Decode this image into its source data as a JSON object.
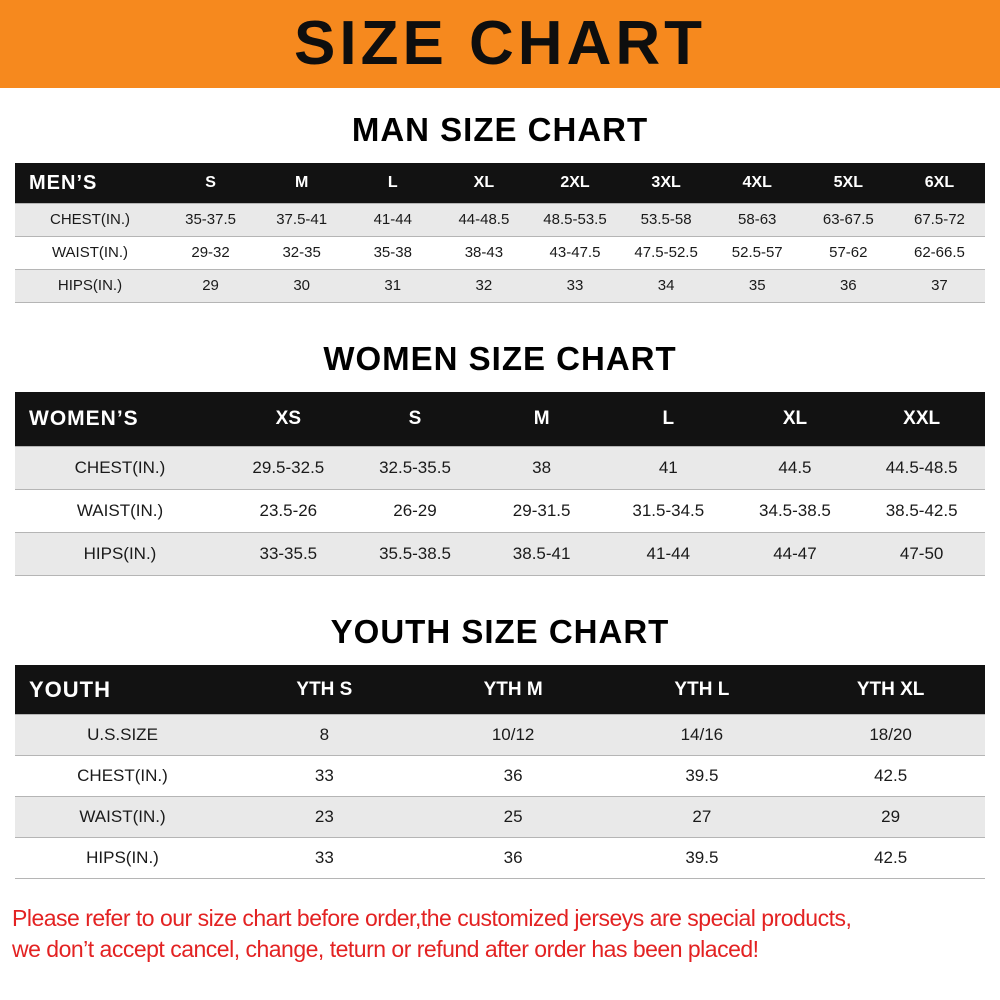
{
  "banner": {
    "title": "SIZE CHART"
  },
  "colors": {
    "banner_bg": "#F6891E",
    "table_header_bg": "#121212",
    "shaded_row_bg": "#E9E9E9",
    "notice_text": "#E32222"
  },
  "chart_data": [
    {
      "type": "table",
      "id": "men",
      "title": "MAN SIZE CHART",
      "header_label": "MEN’S",
      "columns": [
        "S",
        "M",
        "L",
        "XL",
        "2XL",
        "3XL",
        "4XL",
        "5XL",
        "6XL"
      ],
      "rows": [
        {
          "label": "CHEST(IN.)",
          "values": [
            "35-37.5",
            "37.5-41",
            "41-44",
            "44-48.5",
            "48.5-53.5",
            "53.5-58",
            "58-63",
            "63-67.5",
            "67.5-72"
          ]
        },
        {
          "label": "WAIST(IN.)",
          "values": [
            "29-32",
            "32-35",
            "35-38",
            "38-43",
            "43-47.5",
            "47.5-52.5",
            "52.5-57",
            "57-62",
            "62-66.5"
          ]
        },
        {
          "label": "HIPS(IN.)",
          "values": [
            "29",
            "30",
            "31",
            "32",
            "33",
            "34",
            "35",
            "36",
            "37"
          ]
        }
      ]
    },
    {
      "type": "table",
      "id": "women",
      "title": "WOMEN SIZE CHART",
      "header_label": "WOMEN’S",
      "columns": [
        "XS",
        "S",
        "M",
        "L",
        "XL",
        "XXL"
      ],
      "rows": [
        {
          "label": "CHEST(IN.)",
          "values": [
            "29.5-32.5",
            "32.5-35.5",
            "38",
            "41",
            "44.5",
            "44.5-48.5"
          ]
        },
        {
          "label": "WAIST(IN.)",
          "values": [
            "23.5-26",
            "26-29",
            "29-31.5",
            "31.5-34.5",
            "34.5-38.5",
            "38.5-42.5"
          ]
        },
        {
          "label": "HIPS(IN.)",
          "values": [
            "33-35.5",
            "35.5-38.5",
            "38.5-41",
            "41-44",
            "44-47",
            "47-50"
          ]
        }
      ]
    },
    {
      "type": "table",
      "id": "youth",
      "title": "YOUTH SIZE CHART",
      "header_label": "YOUTH",
      "columns": [
        "YTH S",
        "YTH M",
        "YTH L",
        "YTH XL"
      ],
      "rows": [
        {
          "label": "U.S.SIZE",
          "values": [
            "8",
            "10/12",
            "14/16",
            "18/20"
          ]
        },
        {
          "label": "CHEST(IN.)",
          "values": [
            "33",
            "36",
            "39.5",
            "42.5"
          ]
        },
        {
          "label": "WAIST(IN.)",
          "values": [
            "23",
            "25",
            "27",
            "29"
          ]
        },
        {
          "label": "HIPS(IN.)",
          "values": [
            "33",
            "36",
            "39.5",
            "42.5"
          ]
        }
      ]
    }
  ],
  "footer": {
    "line1": "Please refer to our size chart before order,the customized jerseys are special products,",
    "line2": "we don’t accept cancel, change, teturn or refund after order has been placed!"
  }
}
